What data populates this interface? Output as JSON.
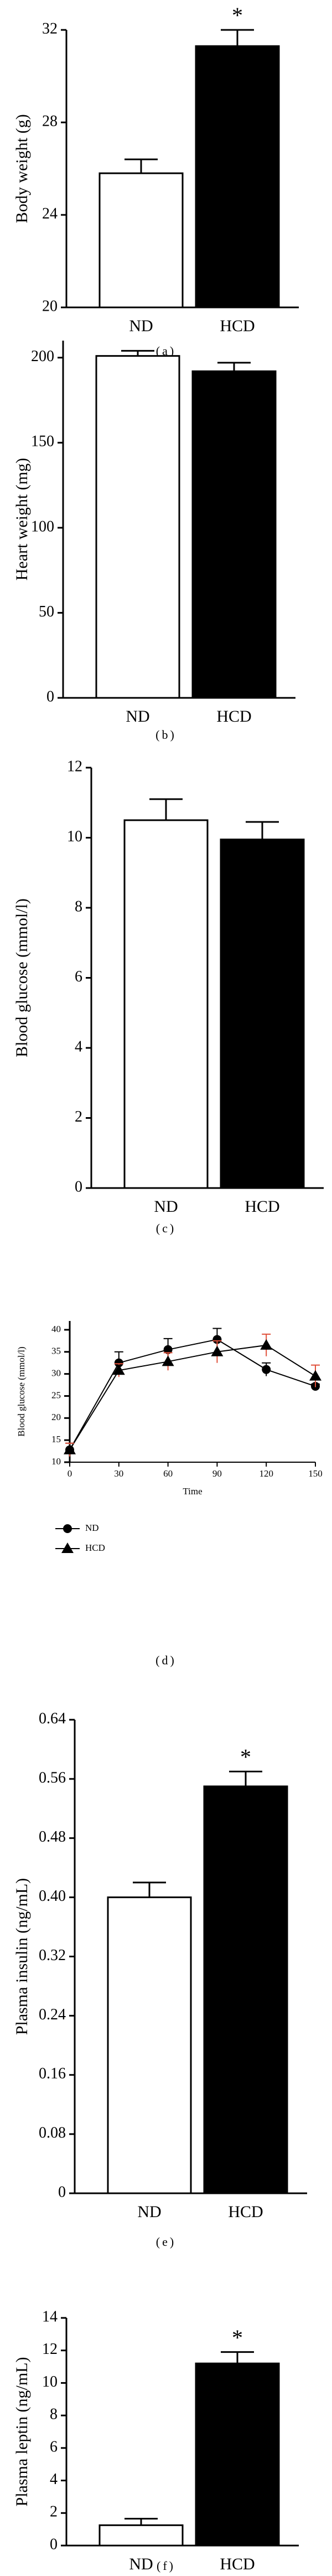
{
  "chart_data": [
    {
      "type": "bar",
      "panel_label": "(a)",
      "ylabel": "Body weight (g)",
      "categories": [
        "ND",
        "HCD"
      ],
      "values": [
        25.8,
        31.3
      ],
      "errors": [
        0.6,
        0.7
      ],
      "colors": [
        "#ffffff",
        "#000000"
      ],
      "annotations": [
        null,
        "*"
      ],
      "ylim": [
        20,
        32
      ],
      "yticks": [
        20,
        24,
        28,
        32
      ]
    },
    {
      "type": "bar",
      "panel_label": "(b)",
      "ylabel": "Heart weight (mg)",
      "categories": [
        "ND",
        "HCD"
      ],
      "values": [
        201,
        192
      ],
      "errors": [
        3,
        5
      ],
      "colors": [
        "#ffffff",
        "#000000"
      ],
      "ylim": [
        0,
        210
      ],
      "yticks": [
        0,
        50,
        100,
        150,
        200
      ]
    },
    {
      "type": "bar",
      "panel_label": "(c)",
      "ylabel": "Blood glucose (mmol/l)",
      "categories": [
        "ND",
        "HCD"
      ],
      "values": [
        10.5,
        9.95
      ],
      "errors": [
        0.6,
        0.5
      ],
      "colors": [
        "#ffffff",
        "#000000"
      ],
      "ylim": [
        0,
        12
      ],
      "yticks": [
        0,
        2,
        4,
        6,
        8,
        10,
        12
      ]
    },
    {
      "type": "line",
      "panel_label": "(d)",
      "ylabel": "Blood glucose (mmol/l)",
      "xlabel": "Time",
      "x": [
        0,
        30,
        60,
        90,
        120,
        150
      ],
      "series": [
        {
          "name": "ND",
          "color": "#000000",
          "error_color": "#000000",
          "marker": "circle",
          "values": [
            12.8,
            32.5,
            35.5,
            37.8,
            31,
            27.2
          ],
          "errors": [
            1.5,
            2.5,
            2.5,
            2.5,
            1.5,
            0.5
          ]
        },
        {
          "name": "HCD",
          "color": "#000000",
          "error_color": "#e0503a",
          "marker": "triangle",
          "values": [
            12.8,
            30.8,
            32.8,
            35,
            36.5,
            29.5
          ],
          "errors": [
            1.5,
            1.5,
            2,
            2.5,
            2.5,
            2.5
          ]
        }
      ],
      "xlim": [
        0,
        150
      ],
      "xticks": [
        0,
        30,
        60,
        90,
        120,
        150
      ],
      "ylim": [
        10,
        42
      ],
      "yticks": [
        10,
        15,
        20,
        25,
        30,
        35,
        40
      ],
      "legend": "bottom-left"
    },
    {
      "type": "bar",
      "panel_label": "(e)",
      "ylabel": "Plasma insulin (ng/mL)",
      "categories": [
        "ND",
        "HCD"
      ],
      "values": [
        0.4,
        0.55
      ],
      "errors": [
        0.02,
        0.02
      ],
      "colors": [
        "#ffffff",
        "#000000"
      ],
      "annotations": [
        null,
        "*"
      ],
      "ylim": [
        0,
        0.64
      ],
      "yticks": [
        0,
        0.08,
        0.16,
        0.24,
        0.32,
        {
          "value": 0.4,
          "label": "0.40"
        },
        0.48,
        0.56,
        0.64
      ]
    },
    {
      "type": "bar",
      "panel_label": "(f)",
      "ylabel": "Plasma leptin (ng/mL)",
      "categories": [
        "ND",
        "HCD"
      ],
      "values": [
        1.25,
        11.2
      ],
      "errors": [
        0.4,
        0.7
      ],
      "colors": [
        "#ffffff",
        "#000000"
      ],
      "annotations": [
        null,
        "*"
      ],
      "ylim": [
        0,
        14
      ],
      "yticks": [
        0,
        2,
        4,
        6,
        8,
        10,
        12,
        14
      ]
    }
  ]
}
